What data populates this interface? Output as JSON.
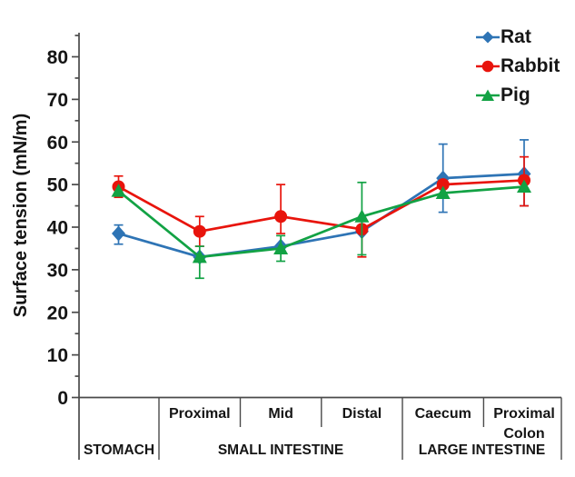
{
  "figure": {
    "background_color": "#ffffff",
    "axis_color": "#4a4a4a",
    "text_color": "#151515"
  },
  "chart_data": {
    "type": "line",
    "title": "",
    "xlabel": "",
    "ylabel": "Surface tension (mN/m)",
    "ylim": [
      0,
      85
    ],
    "yticks": [
      0,
      10,
      20,
      30,
      40,
      50,
      60,
      70,
      80
    ],
    "minor_tick_step": 5,
    "grid": false,
    "legend_position": "top-right",
    "categories": [
      "STOMACH",
      "Proximal",
      "Mid",
      "Distal",
      "Caecum",
      "Proximal Colon"
    ],
    "x_axis": {
      "sub_labels": [
        "",
        "Proximal",
        "Mid",
        "Distal",
        "Caecum",
        "Proximal\nColon"
      ],
      "group_labels": [
        {
          "label": "STOMACH",
          "span": [
            0,
            0
          ]
        },
        {
          "label": "SMALL INTESTINE",
          "span": [
            1,
            3
          ]
        },
        {
          "label": "LARGE INTESTINE",
          "span": [
            4,
            5
          ]
        }
      ]
    },
    "series": [
      {
        "name": "Rat",
        "marker": "diamond",
        "color": "#2E74B5",
        "values": [
          38.5,
          33,
          35.5,
          39,
          51.5,
          52.5
        ],
        "err_up": [
          2,
          0,
          0,
          0,
          8,
          8
        ],
        "err_down": [
          2.5,
          0,
          0,
          0,
          8,
          7.5
        ]
      },
      {
        "name": "Rabbit",
        "marker": "circle",
        "color": "#E8140C",
        "values": [
          49.5,
          39,
          42.5,
          39.5,
          50,
          51
        ],
        "err_up": [
          2.5,
          3.5,
          7.5,
          0,
          0,
          5.5
        ],
        "err_down": [
          2.5,
          3.5,
          4,
          6.5,
          0,
          6
        ]
      },
      {
        "name": "Pig",
        "marker": "triangle",
        "color": "#12A244",
        "values": [
          48.5,
          33,
          35,
          42.5,
          48,
          49.5
        ],
        "err_up": [
          0,
          2.5,
          3,
          8,
          0,
          0
        ],
        "err_down": [
          0,
          5,
          3,
          9,
          0,
          0
        ]
      }
    ]
  }
}
